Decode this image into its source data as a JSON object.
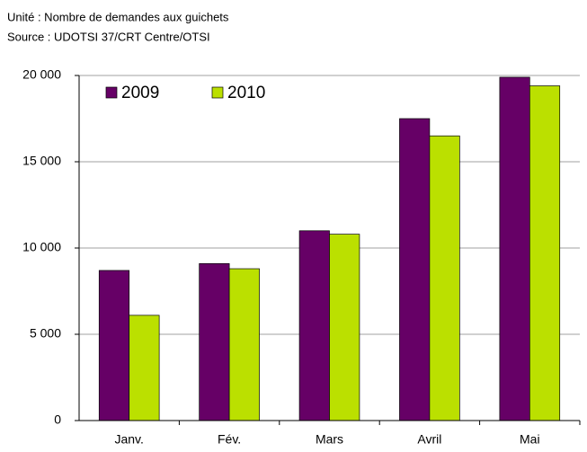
{
  "chart_data": {
    "type": "bar",
    "subtitle": "Unité : Nombre de demandes aux guichets",
    "source": "Source : UDOTSI 37/CRT Centre/OTSI",
    "categories": [
      "Janv.",
      "Fév.",
      "Mars",
      "Avril",
      "Mai"
    ],
    "series": [
      {
        "name": "2009",
        "color": "#660066",
        "values": [
          8700,
          9100,
          11000,
          17500,
          19900
        ]
      },
      {
        "name": "2010",
        "color": "#bbe000",
        "values": [
          6100,
          8800,
          10800,
          16500,
          19400
        ]
      }
    ],
    "ylim": [
      0,
      20000
    ],
    "yticks": [
      0,
      {
        "value": 5000,
        "label": "5 000"
      },
      {
        "value": 10000,
        "label": "10 000"
      },
      {
        "value": 15000,
        "label": "15 000"
      },
      {
        "value": 20000,
        "label": "20 000"
      }
    ],
    "grid": true,
    "legend": "top-left"
  }
}
